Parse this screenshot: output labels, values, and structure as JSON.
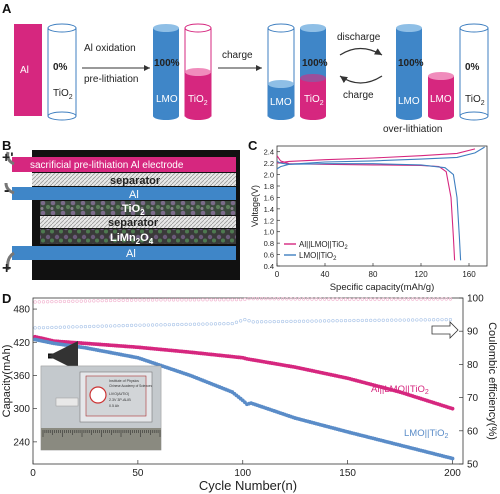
{
  "panels": {
    "a": "A",
    "b": "B",
    "c": "C",
    "d": "D"
  },
  "panel_a": {
    "al": "Al",
    "pct0": "0%",
    "tio2": "TiO",
    "sub2": "2",
    "arrow1_line1": "Al oxidation",
    "arrow1_line2": "pre-lithiation",
    "pct100_a": "100%",
    "lmo": "LMO",
    "charge": "charge",
    "pct100_b": "100%",
    "discharge": "discharge",
    "charge2": "charge",
    "over": "over-lithiation",
    "pct0_b": "0%"
  },
  "panel_b": {
    "top_label": "sacrificial pre-lithiation Al electrode",
    "separator1": "separator",
    "al_mid": "Al",
    "tio2": "TiO",
    "tio2_sub": "2",
    "separator2": "separator",
    "limn": "LiMn",
    "limn_sub1": "2",
    "limn_o": "O",
    "limn_sub2": "4",
    "al_bot": "Al",
    "plus_top": "+",
    "minus": "-",
    "plus_bot": "+",
    "prime": "'"
  },
  "chart_data": [
    {
      "id": "C",
      "type": "line",
      "xlabel": "Specific capacity(mAh/g)",
      "ylabel": "Voltage(V)",
      "xlim": [
        0,
        175
      ],
      "ylim": [
        0.4,
        2.5
      ],
      "xticks": [
        0,
        40,
        80,
        120,
        160
      ],
      "yticks": [
        0.4,
        0.6,
        0.8,
        1.0,
        1.2,
        1.4,
        1.6,
        1.8,
        2.0,
        2.2,
        2.4
      ],
      "legend_position": "bottom-left",
      "series": [
        {
          "name": "Al||LMO||TiO2",
          "color": "#d6277f",
          "charge": [
            [
              0,
              2.2
            ],
            [
              3,
              2.21
            ],
            [
              10,
              2.23
            ],
            [
              40,
              2.26
            ],
            [
              80,
              2.29
            ],
            [
              120,
              2.33
            ],
            [
              150,
              2.37
            ],
            [
              165,
              2.45
            ]
          ],
          "discharge": [
            [
              0,
              2.33
            ],
            [
              3,
              2.24
            ],
            [
              10,
              2.19
            ],
            [
              40,
              2.18
            ],
            [
              80,
              2.17
            ],
            [
              120,
              2.16
            ],
            [
              135,
              2.14
            ],
            [
              141,
              2.05
            ],
            [
              145,
              1.6
            ],
            [
              147,
              0.9
            ],
            [
              148,
              0.5
            ]
          ]
        },
        {
          "name": "LMO||TiO2",
          "color": "#3f7fc0",
          "charge": [
            [
              0,
              2.1
            ],
            [
              3,
              2.14
            ],
            [
              10,
              2.18
            ],
            [
              40,
              2.22
            ],
            [
              80,
              2.24
            ],
            [
              120,
              2.27
            ],
            [
              150,
              2.3
            ],
            [
              165,
              2.38
            ],
            [
              173,
              2.48
            ]
          ],
          "discharge": [
            [
              0,
              2.23
            ],
            [
              3,
              2.2
            ],
            [
              10,
              2.18
            ],
            [
              40,
              2.19
            ],
            [
              80,
              2.19
            ],
            [
              120,
              2.17
            ],
            [
              140,
              2.12
            ],
            [
              147,
              2.0
            ],
            [
              150,
              1.6
            ],
            [
              152,
              0.9
            ],
            [
              153,
              0.5
            ]
          ]
        }
      ]
    },
    {
      "id": "D",
      "type": "scatter",
      "xlabel": "Cycle Number(n)",
      "ylabel": "Capacity(mAh)",
      "y2label": "Coulombic efficiency(%)",
      "xlim": [
        0,
        205
      ],
      "ylim": [
        200,
        500
      ],
      "y2lim": [
        50,
        100
      ],
      "xticks": [
        0,
        50,
        100,
        150,
        200
      ],
      "yticks": [
        240,
        300,
        360,
        420,
        480
      ],
      "y2ticks": [
        50,
        60,
        70,
        80,
        90,
        100
      ],
      "series_labels": [
        "Al||LMO||TiO2",
        "LMO||TiO2"
      ],
      "capacity": [
        {
          "name": "Al||LMO||TiO2",
          "color": "#d6277f",
          "points": [
            [
              1,
              430
            ],
            [
              10,
              422
            ],
            [
              25,
              418
            ],
            [
              50,
              411
            ],
            [
              75,
              402
            ],
            [
              100,
              392
            ],
            [
              102,
              390
            ],
            [
              125,
              375
            ],
            [
              150,
              355
            ],
            [
              175,
              330
            ],
            [
              200,
              300
            ]
          ]
        },
        {
          "name": "LMO||TiO2",
          "color": "#5a8cc8",
          "points": [
            [
              1,
              425
            ],
            [
              10,
              418
            ],
            [
              25,
              410
            ],
            [
              50,
              392
            ],
            [
              75,
              360
            ],
            [
              95,
              330
            ],
            [
              100,
              315
            ],
            [
              102,
              308
            ],
            [
              104,
              310
            ],
            [
              125,
              283
            ],
            [
              150,
              258
            ],
            [
              175,
              234
            ],
            [
              200,
              210
            ]
          ]
        }
      ],
      "efficiency": [
        {
          "name": "Al||LMO||TiO2",
          "color": "#f2b3cf",
          "points": [
            [
              1,
              98.8
            ],
            [
              50,
              99.4
            ],
            [
              100,
              99.5
            ],
            [
              103,
              99.8
            ],
            [
              150,
              99.6
            ],
            [
              200,
              99.7
            ]
          ]
        },
        {
          "name": "LMO||TiO2",
          "color": "#a9c4e8",
          "points": [
            [
              1,
              91
            ],
            [
              50,
              91.8
            ],
            [
              95,
              92.3
            ],
            [
              101,
              93.5
            ],
            [
              105,
              92.8
            ],
            [
              150,
              93.2
            ],
            [
              200,
              93.5
            ]
          ]
        }
      ]
    }
  ],
  "inset_photo": {
    "line1": "Institute of Physics",
    "line2": "Chinese Academy of Sciences",
    "line3": "LiVO(Al/TiO)",
    "line4": "2.3V 3P-ALIB",
    "line5": "0.5 Ah"
  }
}
